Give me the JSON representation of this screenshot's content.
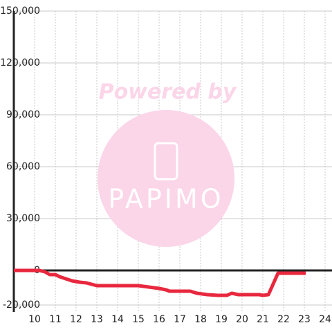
{
  "chart_data": {
    "type": "line",
    "watermark": [
      "Powered by",
      "PAPIMO"
    ],
    "x": [
      9.0,
      10.23,
      10.5,
      10.73,
      11.0,
      11.2,
      11.5,
      11.8,
      12.17,
      12.5,
      13.0,
      15.0,
      15.5,
      16.0,
      16.33,
      16.5,
      17.5,
      17.83,
      18.33,
      18.83,
      19.27,
      19.5,
      19.83,
      20.83,
      21.0,
      21.27,
      21.73,
      23.07
    ],
    "series": [
      {
        "color": "#e8283e",
        "values": [
          0,
          0,
          -800,
          -2400,
          -2400,
          -3600,
          -4800,
          -6000,
          -6800,
          -7200,
          -8800,
          -8800,
          -9600,
          -10400,
          -11200,
          -12000,
          -12000,
          -13200,
          -14000,
          -14400,
          -14400,
          -13200,
          -14000,
          -14000,
          -14400,
          -14000,
          -1600,
          -1600
        ]
      }
    ],
    "xlim": [
      9,
      24.4
    ],
    "xticks": [
      10,
      11,
      12,
      13,
      14,
      15,
      16,
      17,
      18,
      19,
      20,
      21,
      22,
      23,
      24
    ],
    "ylim": [
      -24000,
      150000
    ],
    "yticks": [
      {
        "value": -20000,
        "label": "-20,000"
      },
      0,
      {
        "value": 30000,
        "label": "30,000"
      },
      {
        "value": 60000,
        "label": "60,000"
      },
      {
        "value": 90000,
        "label": "90,000"
      },
      {
        "value": 120000,
        "label": "120,000"
      },
      {
        "value": 150000,
        "label": "150,000"
      }
    ],
    "grid": true
  }
}
